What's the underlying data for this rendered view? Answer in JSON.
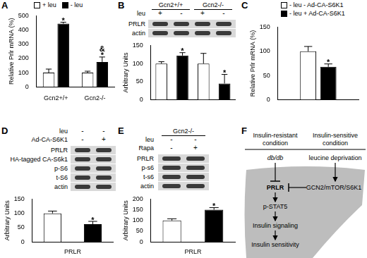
{
  "panel_labels": [
    "A",
    "B",
    "C",
    "D",
    "E",
    "F"
  ],
  "chart_data": [
    {
      "type": "bar",
      "y_label": "Relative Prlr mRNA (%)",
      "categories": [
        "Gcn2+/+",
        "Gcn2-/-"
      ],
      "series": [
        {
          "name": "+ leu",
          "color": "#ffffff",
          "values": [
            100,
            100
          ],
          "errors": [
            25,
            10
          ],
          "annotations": [
            [],
            []
          ]
        },
        {
          "name": "- leu",
          "color": "#000000",
          "values": [
            445,
            175
          ],
          "errors": [
            10,
            35
          ],
          "annotations": [
            [
              "*"
            ],
            [
              "&",
              "*"
            ]
          ]
        }
      ],
      "ylim": [
        0,
        500
      ],
      "yticks": [
        0,
        100,
        200,
        300,
        400,
        500
      ],
      "grid": false,
      "legend": "top-left"
    },
    {
      "type": "bar",
      "y_label": "Arbitrary Units",
      "categories": [
        null,
        null,
        null,
        null
      ],
      "values": [
        100,
        122,
        100,
        45
      ],
      "errors": [
        5,
        8,
        28,
        25
      ],
      "colors": [
        "#ffffff",
        "#000000",
        "#ffffff",
        "#000000"
      ],
      "annotations": [
        [],
        [
          "*"
        ],
        [],
        [
          "*"
        ]
      ],
      "ylim": [
        0,
        150
      ],
      "yticks": [
        0,
        50,
        100,
        150
      ],
      "grid": false,
      "tick_labels": "y"
    },
    {
      "type": "bar",
      "y_label": "Relative Prlr mRNA (%)",
      "categories": [
        null
      ],
      "series": [
        {
          "name": "- leu - Ad-CA-S6K1",
          "color": "#ffffff",
          "values": [
            100
          ],
          "errors": [
            10
          ],
          "annotations": [
            []
          ]
        },
        {
          "name": "- leu + Ad-CA-S6K1",
          "color": "#000000",
          "values": [
            68
          ],
          "errors": [
            6
          ],
          "annotations": [
            [
              "*"
            ]
          ]
        }
      ],
      "ylim": [
        0,
        150
      ],
      "yticks": [
        0,
        50,
        100,
        150
      ],
      "grid": false,
      "legend": "top",
      "tick_labels": "y"
    },
    {
      "type": "bar",
      "y_label": "Arbitrary Units",
      "x_label": "PRLR",
      "categories": [
        null,
        null
      ],
      "values": [
        100,
        62
      ],
      "errors": [
        8,
        10
      ],
      "colors": [
        "#ffffff",
        "#000000"
      ],
      "annotations": [
        [],
        [
          "*"
        ]
      ],
      "ylim": [
        0,
        150
      ],
      "yticks": [
        0,
        50,
        100,
        150
      ],
      "grid": false,
      "tick_labels": "y"
    },
    {
      "type": "bar",
      "y_label": "Arbitrary Units",
      "x_label": "PRLR",
      "categories": [
        null,
        null
      ],
      "values": [
        100,
        150
      ],
      "errors": [
        8,
        10
      ],
      "colors": [
        "#ffffff",
        "#000000"
      ],
      "annotations": [
        [],
        [
          "*"
        ]
      ],
      "ylim": [
        0,
        200
      ],
      "yticks": [
        0,
        50,
        100,
        150,
        200
      ],
      "grid": false,
      "tick_labels": "y"
    }
  ],
  "blots": [
    {
      "groups": [
        "Gcn2+/+",
        "Gcn2-/-"
      ],
      "conditions": [
        {
          "label": "leu",
          "values": [
            "+",
            "-",
            "+",
            "-"
          ]
        }
      ],
      "rows": [
        "PRLR",
        "actin"
      ]
    },
    {
      "groups": [],
      "conditions": [
        {
          "label": "leu",
          "values": [
            "-",
            "-"
          ]
        },
        {
          "label": "Ad-CA-S6K1",
          "values": [
            "-",
            "+"
          ]
        }
      ],
      "rows": [
        "PRLR",
        "HA-tagged CA-S6k1",
        "p-S6",
        "t-S6",
        "actin"
      ]
    },
    {
      "groups": [
        "Gcn2-/-"
      ],
      "conditions": [
        {
          "label": "leu",
          "values": [
            "-",
            "-"
          ]
        },
        {
          "label": "Rapa",
          "values": [
            "-",
            "+"
          ]
        }
      ],
      "rows": [
        "PRLR",
        "p-s6",
        "t-s6",
        "actin"
      ]
    }
  ],
  "diagram": {
    "left_condition": [
      "Insulin-resistant",
      "condition"
    ],
    "right_condition": [
      "Insulin-sensitive",
      "condition"
    ],
    "left_input": "db/db",
    "right_input": "leucine deprivation",
    "pathway": "GCN2/mTOR/S6K1",
    "target": "PRLR",
    "cascade": [
      "p-STAT5",
      "Insulin signaling",
      "Insulin sensitivity"
    ]
  }
}
